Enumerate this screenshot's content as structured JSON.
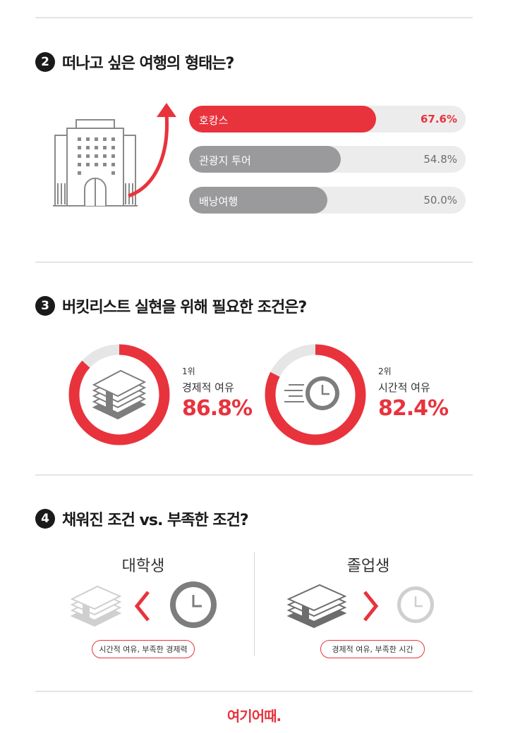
{
  "section2": {
    "number": "2",
    "title": "떠나고 싶은 여행의 형태는?",
    "bars": [
      {
        "label": "호캉스",
        "pct_text": "67.6%",
        "value": 67.6,
        "color": "#e8333d"
      },
      {
        "label": "관광지 투어",
        "pct_text": "54.8%",
        "value": 54.8,
        "color": "#9a9a9c"
      },
      {
        "label": "배낭여행",
        "pct_text": "50.0%",
        "value": 50.0,
        "color": "#9a9a9c"
      }
    ]
  },
  "section3": {
    "number": "3",
    "title": "버킷리스트 실현을 위해 필요한 조건은?",
    "items": [
      {
        "rank": "1위",
        "label": "경제적 여유",
        "value_text": "86.8%",
        "value": 86.8,
        "icon": "money-stack-icon"
      },
      {
        "rank": "2위",
        "label": "시간적 여유",
        "value_text": "82.4%",
        "value": 82.4,
        "icon": "fast-clock-icon"
      }
    ]
  },
  "section4": {
    "number": "4",
    "title": "채워진 조건 vs. 부족한 조건?",
    "left": {
      "heading": "대학생",
      "caption": "시간적 여유, 부족한 경제력"
    },
    "right": {
      "heading": "졸업생",
      "caption": "경제적 여유, 부족한 시간"
    }
  },
  "brand": {
    "logo": "여기어때.",
    "accent": "#e8333d"
  }
}
